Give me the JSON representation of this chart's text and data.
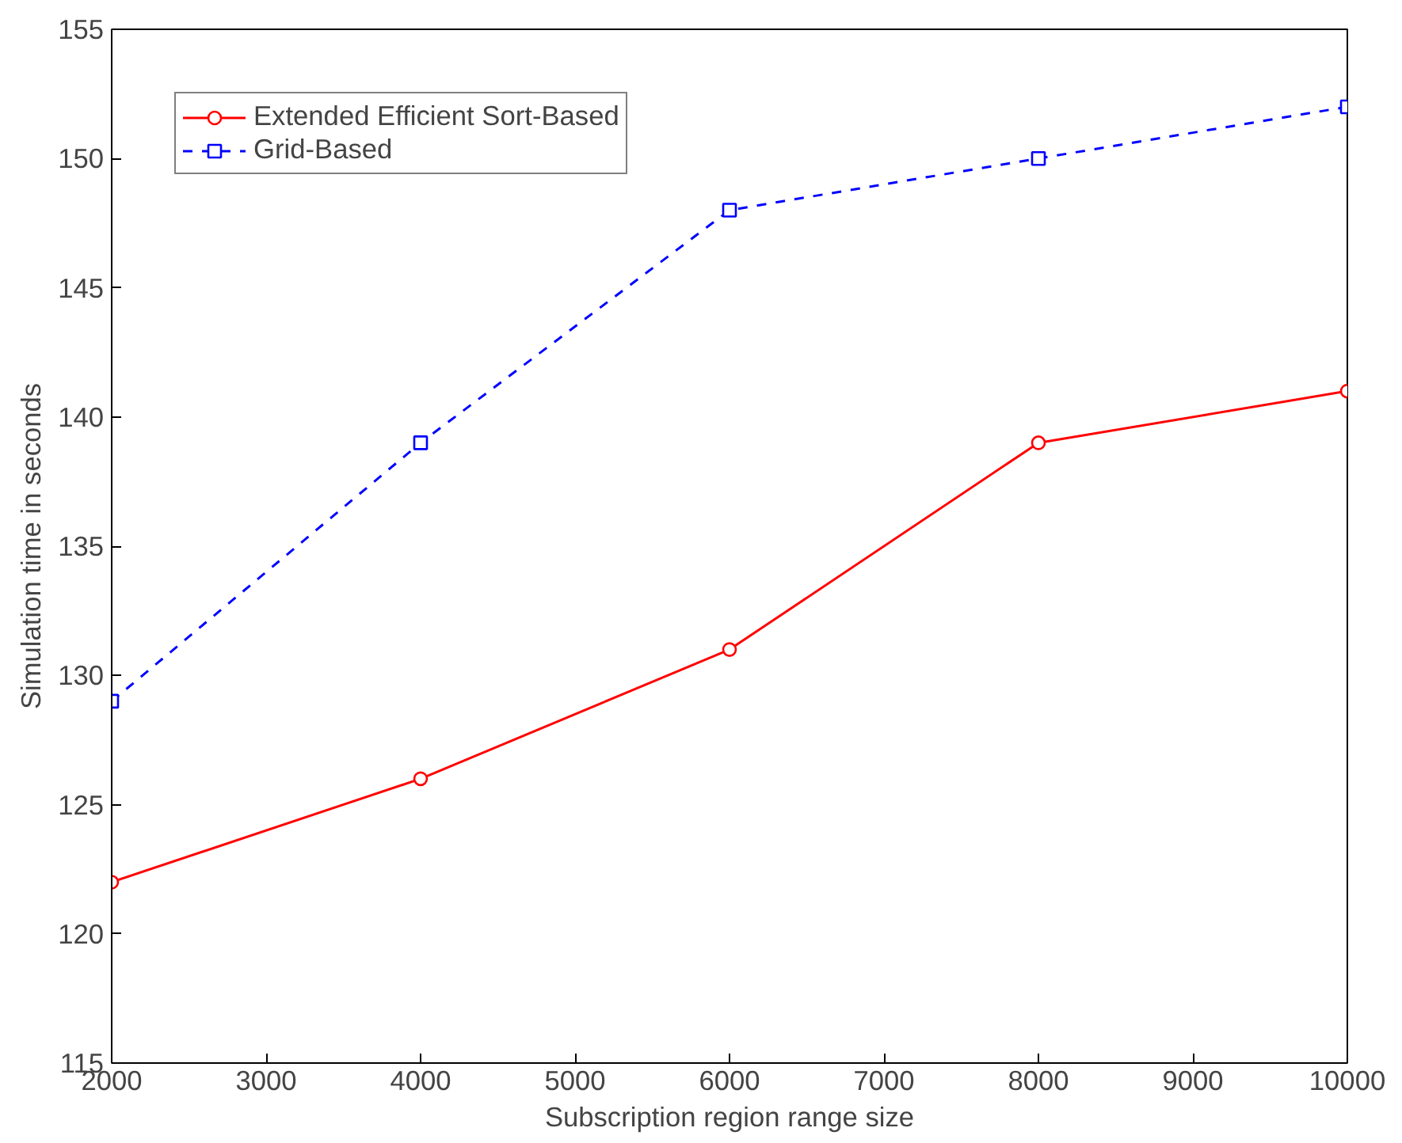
{
  "chart_data": {
    "type": "line",
    "xlabel": "Subscription region range size",
    "ylabel": "Simulation time in seconds",
    "x": [
      2000,
      4000,
      6000,
      8000,
      10000
    ],
    "series": [
      {
        "name": "Extended Efficient Sort-Based",
        "color": "#ff0000",
        "values": [
          122,
          126,
          131,
          139,
          141
        ],
        "marker": "circle",
        "line_style": "solid"
      },
      {
        "name": "Grid-Based",
        "color": "#0000ff",
        "values": [
          129,
          139,
          148,
          150,
          152
        ],
        "marker": "square",
        "line_style": "dashed"
      }
    ],
    "xlim": [
      2000,
      10000
    ],
    "xticks": [
      2000,
      3000,
      4000,
      5000,
      6000,
      7000,
      8000,
      9000,
      10000
    ],
    "ylim": [
      115,
      155
    ],
    "yticks": [
      115,
      120,
      125,
      130,
      135,
      140,
      145,
      150,
      155
    ],
    "grid": false,
    "legend": "top left"
  }
}
